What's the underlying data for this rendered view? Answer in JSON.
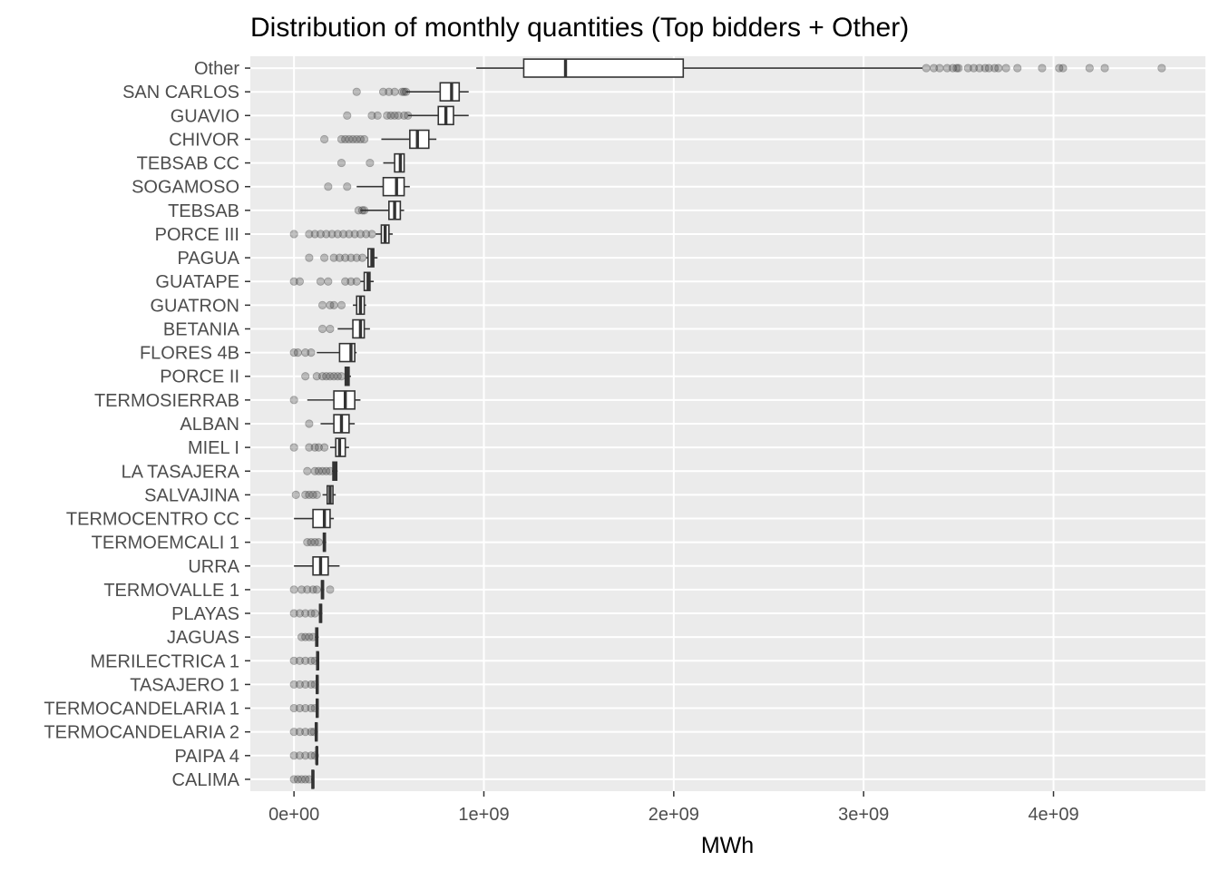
{
  "chart_data": {
    "type": "boxplot",
    "orientation": "horizontal",
    "title": "Distribution of monthly quantities (Top bidders + Other)",
    "xlabel": "MWh",
    "ylabel": "",
    "xlim": [
      -230000000,
      4800000000
    ],
    "x_ticks": [
      {
        "value": 0,
        "label": "0e+00"
      },
      {
        "value": 1000000000,
        "label": "1e+09"
      },
      {
        "value": 2000000000,
        "label": "2e+09"
      },
      {
        "value": 3000000000,
        "label": "3e+09"
      },
      {
        "value": 4000000000,
        "label": "4e+09"
      }
    ],
    "grid": true,
    "legend": "none",
    "colors": {
      "panel": "#ebebeb",
      "grid_major": "#ffffff",
      "box_fill": "#ffffff",
      "box_line": "#333333",
      "outlier": "#333333"
    },
    "categories": [
      {
        "name": "Other",
        "min": 960000000,
        "q1": 1210000000,
        "median": 1430000000,
        "q3": 2050000000,
        "max": 3310000000,
        "outliers": [
          3330000000,
          3370000000,
          3400000000,
          3440000000,
          3470000000,
          3490000000,
          3500000000,
          3550000000,
          3580000000,
          3610000000,
          3640000000,
          3660000000,
          3690000000,
          3710000000,
          3750000000,
          3810000000,
          3940000000,
          4030000000,
          4050000000,
          4190000000,
          4270000000,
          4570000000
        ]
      },
      {
        "name": "SAN CARLOS",
        "min": 590000000,
        "q1": 770000000,
        "median": 830000000,
        "q3": 870000000,
        "max": 920000000,
        "outliers": [
          330000000,
          470000000,
          500000000,
          530000000,
          570000000,
          580000000,
          590000000
        ]
      },
      {
        "name": "GUAVIO",
        "min": 600000000,
        "q1": 760000000,
        "median": 800000000,
        "q3": 840000000,
        "max": 920000000,
        "outliers": [
          280000000,
          410000000,
          440000000,
          490000000,
          510000000,
          530000000,
          550000000,
          580000000,
          600000000
        ]
      },
      {
        "name": "CHIVOR",
        "min": 460000000,
        "q1": 610000000,
        "median": 650000000,
        "q3": 710000000,
        "max": 750000000,
        "outliers": [
          160000000,
          250000000,
          270000000,
          290000000,
          310000000,
          330000000,
          350000000,
          370000000
        ]
      },
      {
        "name": "TEBSAB CC",
        "min": 470000000,
        "q1": 530000000,
        "median": 560000000,
        "q3": 580000000,
        "max": 580000000,
        "outliers": [
          250000000,
          400000000
        ]
      },
      {
        "name": "SOGAMOSO",
        "min": 330000000,
        "q1": 470000000,
        "median": 540000000,
        "q3": 580000000,
        "max": 610000000,
        "outliers": [
          180000000,
          280000000
        ]
      },
      {
        "name": "TEBSAB",
        "min": 350000000,
        "q1": 500000000,
        "median": 530000000,
        "q3": 560000000,
        "max": 580000000,
        "outliers": [
          340000000,
          360000000,
          370000000
        ]
      },
      {
        "name": "PORCE III",
        "min": 430000000,
        "q1": 460000000,
        "median": 480000000,
        "q3": 500000000,
        "max": 520000000,
        "outliers": [
          0,
          80000000,
          110000000,
          140000000,
          170000000,
          200000000,
          230000000,
          260000000,
          290000000,
          320000000,
          350000000,
          380000000,
          410000000
        ]
      },
      {
        "name": "PAGUA",
        "min": 380000000,
        "q1": 390000000,
        "median": 410000000,
        "q3": 420000000,
        "max": 440000000,
        "outliers": [
          80000000,
          160000000,
          210000000,
          240000000,
          270000000,
          300000000,
          330000000,
          360000000
        ]
      },
      {
        "name": "GUATAPE",
        "min": 350000000,
        "q1": 370000000,
        "median": 390000000,
        "q3": 400000000,
        "max": 420000000,
        "outliers": [
          0,
          30000000,
          140000000,
          180000000,
          270000000,
          300000000,
          330000000
        ]
      },
      {
        "name": "GUATRON",
        "min": 310000000,
        "q1": 330000000,
        "median": 350000000,
        "q3": 370000000,
        "max": 380000000,
        "outliers": [
          150000000,
          190000000,
          210000000,
          250000000
        ]
      },
      {
        "name": "BETANIA",
        "min": 230000000,
        "q1": 310000000,
        "median": 350000000,
        "q3": 370000000,
        "max": 400000000,
        "outliers": [
          150000000,
          190000000
        ]
      },
      {
        "name": "FLORES 4B",
        "min": 120000000,
        "q1": 240000000,
        "median": 300000000,
        "q3": 320000000,
        "max": 330000000,
        "outliers": [
          0,
          20000000,
          60000000,
          90000000
        ]
      },
      {
        "name": "PORCE II",
        "min": 270000000,
        "q1": 270000000,
        "median": 280000000,
        "q3": 290000000,
        "max": 300000000,
        "outliers": [
          60000000,
          120000000,
          150000000,
          170000000,
          190000000,
          210000000,
          230000000,
          250000000
        ]
      },
      {
        "name": "TERMOSIERRAB",
        "min": 70000000,
        "q1": 210000000,
        "median": 270000000,
        "q3": 320000000,
        "max": 350000000,
        "outliers": [
          0
        ]
      },
      {
        "name": "ALBAN",
        "min": 140000000,
        "q1": 210000000,
        "median": 250000000,
        "q3": 290000000,
        "max": 320000000,
        "outliers": [
          80000000
        ]
      },
      {
        "name": "MIEL I",
        "min": 190000000,
        "q1": 220000000,
        "median": 240000000,
        "q3": 270000000,
        "max": 290000000,
        "outliers": [
          0,
          80000000,
          110000000,
          130000000,
          160000000
        ]
      },
      {
        "name": "LA TASAJERA",
        "min": 200000000,
        "q1": 205000000,
        "median": 215000000,
        "q3": 225000000,
        "max": 230000000,
        "outliers": [
          70000000,
          110000000,
          130000000,
          150000000,
          170000000,
          190000000
        ]
      },
      {
        "name": "SALVAJINA",
        "min": 150000000,
        "q1": 175000000,
        "median": 190000000,
        "q3": 205000000,
        "max": 220000000,
        "outliers": [
          10000000,
          60000000,
          80000000,
          100000000,
          120000000
        ]
      },
      {
        "name": "TERMOCENTRO CC",
        "min": 0,
        "q1": 100000000,
        "median": 160000000,
        "q3": 190000000,
        "max": 210000000,
        "outliers": []
      },
      {
        "name": "TERMOEMCALI 1",
        "min": 150000000,
        "q1": 155000000,
        "median": 160000000,
        "q3": 165000000,
        "max": 170000000,
        "outliers": [
          70000000,
          90000000,
          110000000,
          130000000
        ]
      },
      {
        "name": "URRA",
        "min": 0,
        "q1": 100000000,
        "median": 140000000,
        "q3": 180000000,
        "max": 240000000,
        "outliers": []
      },
      {
        "name": "TERMOVALLE 1",
        "min": 140000000,
        "q1": 145000000,
        "median": 150000000,
        "q3": 155000000,
        "max": 160000000,
        "outliers": [
          0,
          40000000,
          70000000,
          100000000,
          120000000,
          190000000
        ]
      },
      {
        "name": "PLAYAS",
        "min": 130000000,
        "q1": 135000000,
        "median": 140000000,
        "q3": 145000000,
        "max": 150000000,
        "outliers": [
          0,
          30000000,
          60000000,
          90000000,
          110000000
        ]
      },
      {
        "name": "JAGUAS",
        "min": 110000000,
        "q1": 115000000,
        "median": 120000000,
        "q3": 125000000,
        "max": 130000000,
        "outliers": [
          40000000,
          60000000,
          80000000,
          100000000
        ]
      },
      {
        "name": "MERILECTRICA 1",
        "min": 115000000,
        "q1": 120000000,
        "median": 125000000,
        "q3": 128000000,
        "max": 130000000,
        "outliers": [
          0,
          30000000,
          60000000,
          90000000,
          110000000
        ]
      },
      {
        "name": "TASAJERO 1",
        "min": 115000000,
        "q1": 118000000,
        "median": 122000000,
        "q3": 126000000,
        "max": 130000000,
        "outliers": [
          0,
          30000000,
          60000000,
          90000000,
          110000000
        ]
      },
      {
        "name": "TERMOCANDELARIA 1",
        "min": 115000000,
        "q1": 118000000,
        "median": 122000000,
        "q3": 126000000,
        "max": 130000000,
        "outliers": [
          0,
          30000000,
          60000000,
          90000000,
          110000000
        ]
      },
      {
        "name": "TERMOCANDELARIA 2",
        "min": 110000000,
        "q1": 113000000,
        "median": 117000000,
        "q3": 121000000,
        "max": 125000000,
        "outliers": [
          0,
          30000000,
          60000000,
          90000000,
          105000000
        ]
      },
      {
        "name": "PAIPA 4",
        "min": 115000000,
        "q1": 118000000,
        "median": 120000000,
        "q3": 123000000,
        "max": 125000000,
        "outliers": [
          0,
          30000000,
          60000000,
          90000000,
          110000000
        ]
      },
      {
        "name": "CALIMA",
        "min": 90000000,
        "q1": 95000000,
        "median": 100000000,
        "q3": 103000000,
        "max": 106000000,
        "outliers": [
          0,
          20000000,
          40000000,
          60000000,
          80000000
        ]
      }
    ]
  }
}
